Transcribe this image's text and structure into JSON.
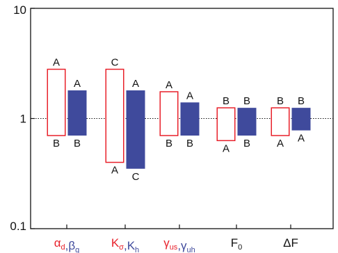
{
  "chart_data": {
    "type": "bar",
    "subtype": "floating-range",
    "y_scale": "log",
    "ylim": [
      0.1,
      10
    ],
    "y_ticks": [
      {
        "value": 10,
        "label": "10"
      },
      {
        "value": 1,
        "label": "1"
      },
      {
        "value": 0.1,
        "label": "0.1"
      }
    ],
    "reference_line": {
      "value": 1,
      "style": "dotted"
    },
    "title": "",
    "xlabel": "",
    "ylabel": "",
    "grid": false,
    "colors": {
      "red": "#e8202a",
      "blue": "#3f4a9c",
      "text": "#111111"
    },
    "categories": [
      {
        "parts": [
          {
            "base": "α",
            "sub": "d",
            "color": "#e8202a"
          },
          {
            "base": ",",
            "sub": "",
            "color": "#3f4a9c"
          },
          {
            "base": "β",
            "sub": "g",
            "color": "#3f4a9c"
          }
        ],
        "bars": [
          {
            "style": "outline-red",
            "low": 0.7,
            "high": 2.8,
            "top_label": "A",
            "bottom_label": "B"
          },
          {
            "style": "filled-blue",
            "low": 0.7,
            "high": 1.8,
            "top_label": "A",
            "bottom_label": "B"
          }
        ]
      },
      {
        "parts": [
          {
            "base": "K",
            "sub": "σ",
            "color": "#e8202a"
          },
          {
            "base": ",",
            "sub": "",
            "color": "#3f4a9c"
          },
          {
            "base": "K",
            "sub": "h",
            "color": "#3f4a9c"
          }
        ],
        "bars": [
          {
            "style": "outline-red",
            "low": 0.4,
            "high": 2.8,
            "top_label": "C",
            "bottom_label": "A"
          },
          {
            "style": "filled-blue",
            "low": 0.35,
            "high": 1.8,
            "top_label": "A",
            "bottom_label": "C"
          }
        ]
      },
      {
        "parts": [
          {
            "base": "γ",
            "sub": "us",
            "color": "#e8202a"
          },
          {
            "base": ",",
            "sub": "",
            "color": "#3f4a9c"
          },
          {
            "base": "γ",
            "sub": "uh",
            "color": "#3f4a9c"
          }
        ],
        "bars": [
          {
            "style": "outline-red",
            "low": 0.7,
            "high": 1.75,
            "top_label": "A",
            "bottom_label": "B"
          },
          {
            "style": "filled-blue",
            "low": 0.7,
            "high": 1.4,
            "top_label": "A",
            "bottom_label": "B"
          }
        ]
      },
      {
        "parts": [
          {
            "base": "F",
            "sub": "0",
            "color": "#111111"
          }
        ],
        "bars": [
          {
            "style": "outline-red",
            "low": 0.63,
            "high": 1.25,
            "top_label": "B",
            "bottom_label": "A"
          },
          {
            "style": "filled-blue",
            "low": 0.7,
            "high": 1.25,
            "top_label": "B",
            "bottom_label": "B"
          }
        ]
      },
      {
        "parts": [
          {
            "base": "ΔF",
            "sub": "",
            "color": "#111111"
          }
        ],
        "bars": [
          {
            "style": "outline-red",
            "low": 0.7,
            "high": 1.25,
            "top_label": "B",
            "bottom_label": "A"
          },
          {
            "style": "filled-blue",
            "low": 0.78,
            "high": 1.25,
            "top_label": "B",
            "bottom_label": "A"
          }
        ]
      }
    ]
  }
}
